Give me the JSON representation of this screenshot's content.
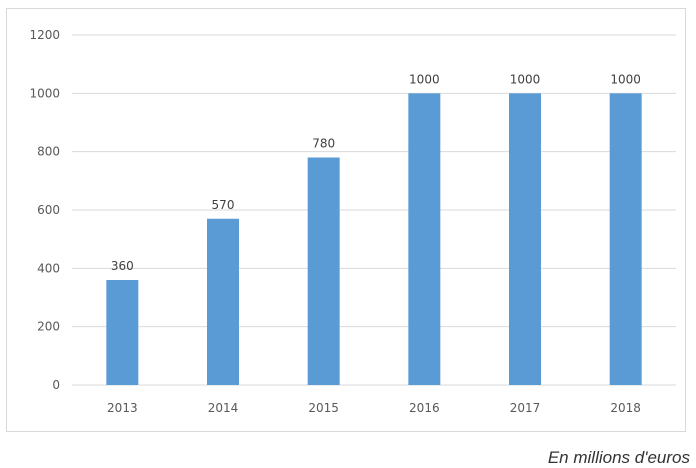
{
  "chart_data": {
    "type": "bar",
    "categories": [
      "2013",
      "2014",
      "2015",
      "2016",
      "2017",
      "2018"
    ],
    "values": [
      360,
      570,
      780,
      1000,
      1000,
      1000
    ],
    "data_labels": [
      "360",
      "570",
      "780",
      "1000",
      "1000",
      "1000"
    ],
    "ylim": [
      0,
      1200
    ],
    "yticks": [
      0,
      200,
      400,
      600,
      800,
      1000,
      1200
    ],
    "grid": true,
    "legend": "none",
    "bar_color": "#5b9bd5",
    "grid_color": "#d9d9d9"
  },
  "caption": "En millions d'euros"
}
